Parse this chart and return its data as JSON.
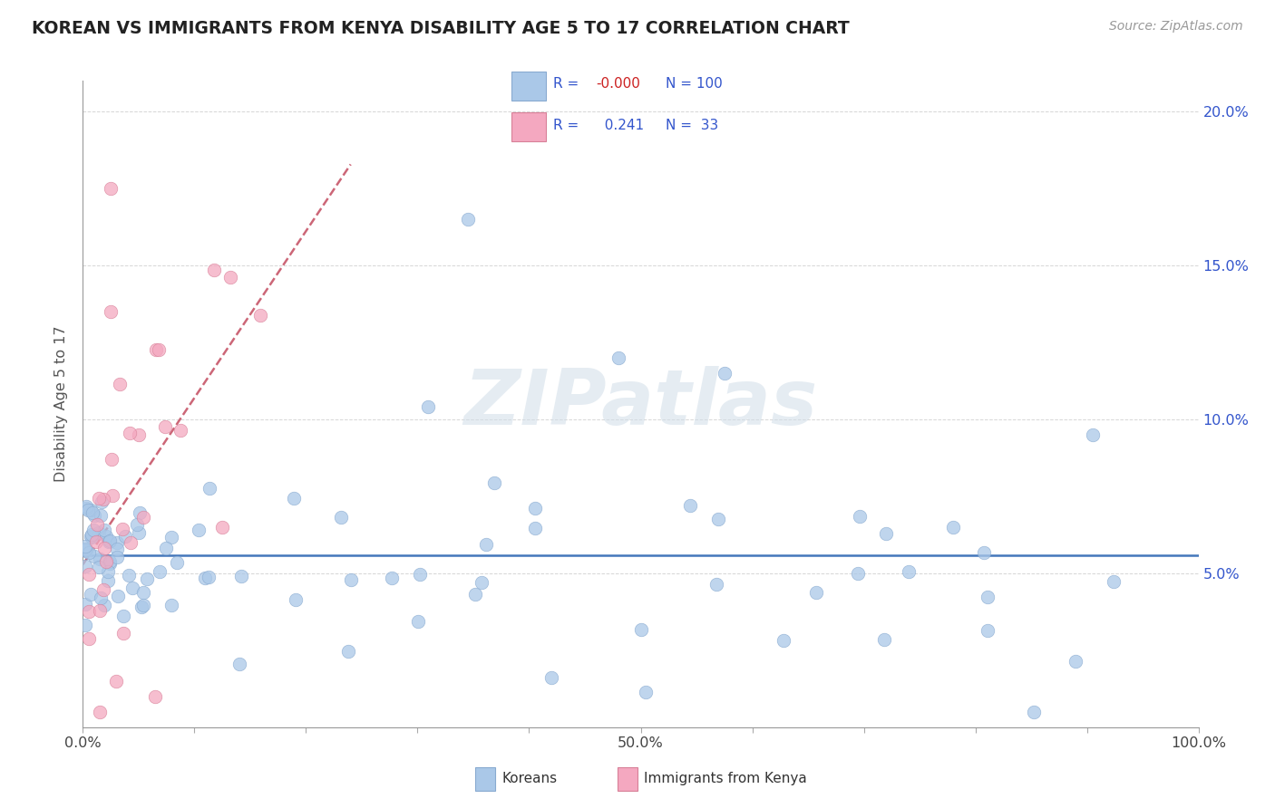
{
  "title": "KOREAN VS IMMIGRANTS FROM KENYA DISABILITY AGE 5 TO 17 CORRELATION CHART",
  "source": "Source: ZipAtlas.com",
  "ylabel": "Disability Age 5 to 17",
  "xlim": [
    0,
    1.0
  ],
  "ylim": [
    0,
    0.21
  ],
  "xtick_positions": [
    0.0,
    0.1,
    0.2,
    0.3,
    0.4,
    0.5,
    0.6,
    0.7,
    0.8,
    0.9,
    1.0
  ],
  "xticklabels": [
    "0.0%",
    "",
    "",
    "",
    "",
    "50.0%",
    "",
    "",
    "",
    "",
    "100.0%"
  ],
  "ytick_positions": [
    0.05,
    0.1,
    0.15,
    0.2
  ],
  "yticklabels_right": [
    "5.0%",
    "10.0%",
    "15.0%",
    "20.0%"
  ],
  "legend_korean_r": "-0.000",
  "legend_korean_n": "100",
  "legend_kenya_r": "0.241",
  "legend_kenya_n": "33",
  "korean_color": "#aac8e8",
  "korean_edge_color": "#88aad0",
  "kenya_color": "#f4a8c0",
  "kenya_edge_color": "#d88098",
  "trendline_korean_color": "#4477bb",
  "trendline_kenya_color": "#cc6677",
  "watermark_color": "#d0dde8",
  "title_color": "#222222",
  "source_color": "#999999",
  "right_axis_color": "#3355cc",
  "legend_text_color": "#3355cc",
  "legend_r_neg_color": "#cc2222",
  "legend_r_pos_color": "#3355cc",
  "grid_color": "#cccccc",
  "bottom_legend_color": "#333333"
}
